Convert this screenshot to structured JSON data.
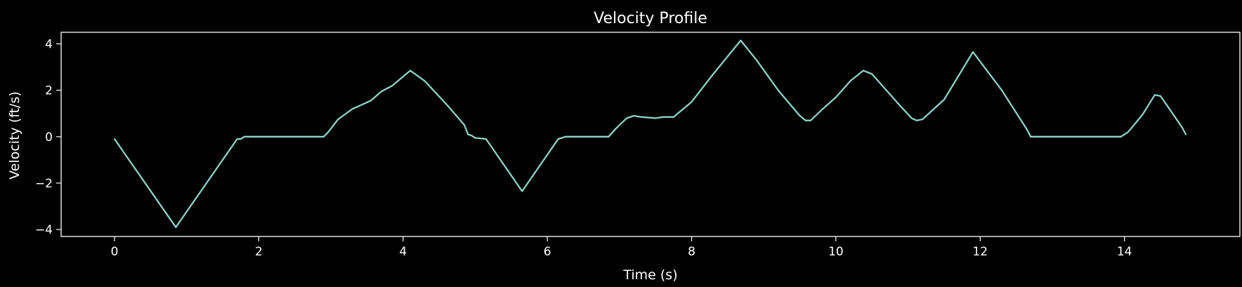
{
  "chart_data": {
    "type": "line",
    "title": "Velocity Profile",
    "xlabel": "Time (s)",
    "ylabel": "Velocity (ft/s)",
    "xlim": [
      -0.74,
      15.6
    ],
    "ylim": [
      -4.3,
      4.5
    ],
    "xticks": [
      0,
      2,
      4,
      6,
      8,
      10,
      12,
      14
    ],
    "yticks": [
      -4,
      -2,
      0,
      2,
      4
    ],
    "xtick_labels": [
      "0",
      "2",
      "4",
      "6",
      "8",
      "10",
      "12",
      "14"
    ],
    "ytick_labels": [
      "−4",
      "−2",
      "0",
      "2",
      "4"
    ],
    "grid": false,
    "background": "#000000",
    "series_color": "#8dd3c7",
    "series": [
      {
        "x": [
          0,
          0.85,
          1.7,
          1.75,
          1.8,
          2.9,
          2.95,
          3.1,
          3.3,
          3.55,
          3.7,
          3.85,
          4.1,
          4.3,
          4.6,
          4.85,
          4.9,
          4.95,
          5.0,
          5.15,
          5.65,
          6.15,
          6.2,
          6.25,
          6.85,
          6.95,
          7.1,
          7.2,
          7.3,
          7.5,
          7.6,
          7.75,
          8.0,
          8.3,
          8.68,
          8.9,
          9.2,
          9.5,
          9.58,
          9.65,
          9.8,
          10.0,
          10.2,
          10.38,
          10.5,
          10.7,
          10.9,
          11.05,
          11.12,
          11.2,
          11.5,
          11.9,
          12.3,
          12.65,
          12.7,
          13.95,
          14.0,
          14.05,
          14.25,
          14.42,
          14.5,
          14.7,
          14.8,
          14.85
        ],
        "y": [
          -0.1,
          -3.9,
          -0.1,
          -0.1,
          0,
          0,
          0.15,
          0.75,
          1.2,
          1.55,
          1.95,
          2.2,
          2.85,
          2.4,
          1.4,
          0.5,
          0.1,
          0.05,
          -0.05,
          -0.1,
          -2.35,
          -0.1,
          -0.05,
          0,
          0,
          0.35,
          0.8,
          0.9,
          0.85,
          0.8,
          0.85,
          0.85,
          1.5,
          2.7,
          4.15,
          3.3,
          2.0,
          0.9,
          0.7,
          0.7,
          1.15,
          1.7,
          2.4,
          2.85,
          2.7,
          2.0,
          1.3,
          0.8,
          0.7,
          0.75,
          1.6,
          3.65,
          2.0,
          0.3,
          0,
          0,
          0.1,
          0.2,
          0.95,
          1.8,
          1.75,
          0.85,
          0.4,
          0.1
        ]
      }
    ]
  }
}
